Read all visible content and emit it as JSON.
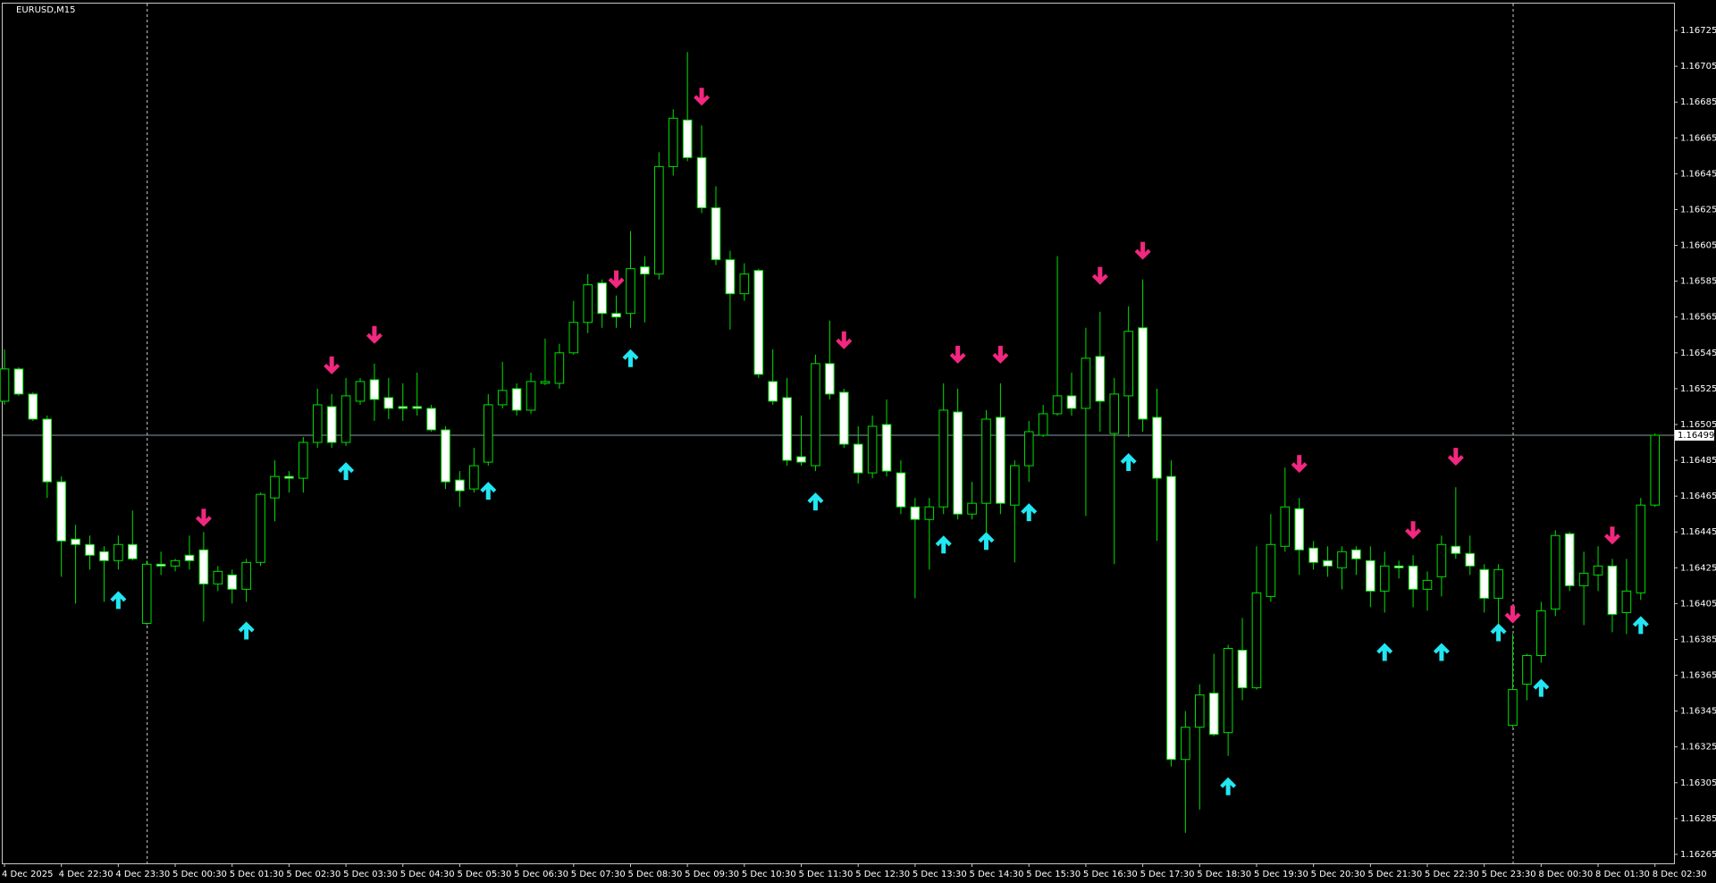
{
  "chart_data": {
    "type": "candlestick",
    "title": "EURUSD,M15",
    "categories": [
      "4 Dec 2025",
      null,
      null,
      null,
      "4 Dec 22:30",
      null,
      null,
      null,
      "4 Dec 23:30",
      null,
      null,
      null,
      "5 Dec 00:30",
      null,
      null,
      null,
      "5 Dec 01:30",
      null,
      null,
      null,
      "5 Dec 02:30",
      null,
      null,
      null,
      "5 Dec 03:30",
      null,
      null,
      null,
      "5 Dec 04:30",
      null,
      null,
      null,
      "5 Dec 05:30",
      null,
      null,
      null,
      "5 Dec 06:30",
      null,
      null,
      null,
      "5 Dec 07:30",
      null,
      null,
      null,
      "5 Dec 08:30",
      null,
      null,
      null,
      "5 Dec 09:30",
      null,
      null,
      null,
      "5 Dec 10:30",
      null,
      null,
      null,
      "5 Dec 11:30",
      null,
      null,
      null,
      "5 Dec 12:30",
      null,
      null,
      null,
      "5 Dec 13:30",
      null,
      null,
      null,
      "5 Dec 14:30",
      null,
      null,
      null,
      "5 Dec 15:30",
      null,
      null,
      null,
      "5 Dec 16:30",
      null,
      null,
      null,
      "5 Dec 17:30",
      null,
      null,
      null,
      "5 Dec 18:30",
      null,
      null,
      null,
      "5 Dec 19:30",
      null,
      null,
      null,
      "5 Dec 20:30",
      null,
      null,
      null,
      "5 Dec 21:30",
      null,
      null,
      null,
      "5 Dec 22:30",
      null,
      null,
      null,
      "5 Dec 23:30",
      null,
      null,
      null,
      "8 Dec 00:30",
      null,
      null,
      null,
      "8 Dec 01:30",
      null,
      null,
      null,
      "8 Dec 02:30"
    ],
    "open": [
      1.16518,
      1.16536,
      1.16522,
      1.16508,
      1.16473,
      1.16441,
      1.16438,
      1.16434,
      1.16429,
      1.16438,
      1.16394,
      1.16427,
      1.16426,
      1.16432,
      1.16435,
      1.16416,
      1.16421,
      1.16413,
      1.16428,
      1.16464,
      1.16476,
      1.16475,
      1.16495,
      1.16515,
      1.16495,
      1.16518,
      1.1653,
      1.1652,
      1.16515,
      1.16515,
      1.16514,
      1.16502,
      1.16474,
      1.16469,
      1.16484,
      1.16516,
      1.16525,
      1.16513,
      1.16528,
      1.16528,
      1.16545,
      1.16562,
      1.16584,
      1.16567,
      1.16567,
      1.16593,
      1.16589,
      1.16649,
      1.16675,
      1.16654,
      1.16626,
      1.16597,
      1.16578,
      1.16591,
      1.16529,
      1.1652,
      1.16487,
      1.16482,
      1.16539,
      1.16523,
      1.16494,
      1.16478,
      1.16505,
      1.16478,
      1.16459,
      1.16452,
      1.16459,
      1.16512,
      1.16455,
      1.16461,
      1.16509,
      1.1646,
      1.16482,
      1.16499,
      1.16511,
      1.16521,
      1.16514,
      1.16543,
      1.165,
      1.16521,
      1.16559,
      1.16509,
      1.16476,
      1.16318,
      1.16336,
      1.16355,
      1.16333,
      1.16379,
      1.16358,
      1.16409,
      1.16437,
      1.16458,
      1.16436,
      1.16429,
      1.16425,
      1.16435,
      1.16429,
      1.16412,
      1.16426,
      1.16426,
      1.16413,
      1.1642,
      1.16437,
      1.16433,
      1.16424,
      1.16408,
      1.16337,
      1.1636,
      1.16376,
      1.16402,
      1.16444,
      1.16415,
      1.16421,
      1.16426,
      1.164,
      1.16411,
      1.1646
    ],
    "high": [
      1.16547,
      1.16537,
      1.16523,
      1.1651,
      1.16476,
      1.16449,
      1.16443,
      1.16437,
      1.16443,
      1.16457,
      1.16429,
      1.16434,
      1.1643,
      1.16443,
      1.16445,
      1.16426,
      1.16424,
      1.1643,
      1.16467,
      1.16485,
      1.16479,
      1.16498,
      1.16525,
      1.16522,
      1.16531,
      1.16531,
      1.16539,
      1.16531,
      1.16528,
      1.16534,
      1.16516,
      1.16504,
      1.16479,
      1.16492,
      1.16522,
      1.1654,
      1.16528,
      1.16534,
      1.16553,
      1.1655,
      1.16574,
      1.16589,
      1.16586,
      1.16577,
      1.16613,
      1.16599,
      1.16657,
      1.16681,
      1.16713,
      1.16672,
      1.16638,
      1.16602,
      1.16595,
      1.16592,
      1.16547,
      1.16531,
      1.1651,
      1.16544,
      1.16563,
      1.16525,
      1.16504,
      1.1651,
      1.16519,
      1.16485,
      1.16464,
      1.16464,
      1.16528,
      1.16525,
      1.16473,
      1.16513,
      1.16528,
      1.16485,
      1.16507,
      1.16516,
      1.16599,
      1.16534,
      1.16559,
      1.16568,
      1.16531,
      1.16571,
      1.16586,
      1.16525,
      1.16485,
      1.16345,
      1.1636,
      1.16377,
      1.16382,
      1.16397,
      1.16437,
      1.16455,
      1.16481,
      1.16464,
      1.1644,
      1.16437,
      1.16437,
      1.16437,
      1.16437,
      1.16434,
      1.16429,
      1.16432,
      1.16423,
      1.16443,
      1.1647,
      1.16443,
      1.16427,
      1.16427,
      1.16388,
      1.16377,
      1.16406,
      1.16446,
      1.16445,
      1.16434,
      1.16437,
      1.1643,
      1.1643,
      1.16464,
      1.165
    ],
    "low": [
      1.16516,
      1.16521,
      1.16507,
      1.16464,
      1.1642,
      1.16405,
      1.16424,
      1.16406,
      1.16424,
      1.16429,
      1.16393,
      1.16421,
      1.16423,
      1.16424,
      1.16395,
      1.16412,
      1.16405,
      1.16406,
      1.16426,
      1.16451,
      1.16467,
      1.16467,
      1.16492,
      1.16492,
      1.16493,
      1.16516,
      1.16507,
      1.16508,
      1.16507,
      1.1651,
      1.16501,
      1.16469,
      1.16459,
      1.16467,
      1.16482,
      1.16514,
      1.1651,
      1.16511,
      1.16527,
      1.16525,
      1.16544,
      1.16556,
      1.16559,
      1.16559,
      1.16559,
      1.16562,
      1.16586,
      1.16644,
      1.16652,
      1.16623,
      1.16594,
      1.16558,
      1.16574,
      1.16531,
      1.16516,
      1.16482,
      1.16482,
      1.16479,
      1.16519,
      1.16492,
      1.16472,
      1.16475,
      1.16476,
      1.16455,
      1.16408,
      1.16424,
      1.16455,
      1.16452,
      1.16452,
      1.16443,
      1.16455,
      1.16428,
      1.16473,
      1.16498,
      1.1651,
      1.1651,
      1.16454,
      1.16501,
      1.16427,
      1.16498,
      1.16501,
      1.1644,
      1.16314,
      1.16277,
      1.1629,
      1.16331,
      1.1632,
      1.16351,
      1.16357,
      1.16406,
      1.16434,
      1.16421,
      1.16424,
      1.1642,
      1.16413,
      1.16421,
      1.16403,
      1.164,
      1.16419,
      1.16403,
      1.16401,
      1.16409,
      1.1643,
      1.16421,
      1.164,
      1.16391,
      1.16336,
      1.16351,
      1.16372,
      1.16398,
      1.16412,
      1.16393,
      1.16412,
      1.16389,
      1.16388,
      1.16407,
      1.16459
    ],
    "close": [
      1.16536,
      1.16522,
      1.16508,
      1.16473,
      1.1644,
      1.16438,
      1.16432,
      1.16429,
      1.16438,
      1.1643,
      1.16427,
      1.16426,
      1.16429,
      1.16429,
      1.16416,
      1.16423,
      1.16413,
      1.16428,
      1.16466,
      1.16476,
      1.16475,
      1.16495,
      1.16516,
      1.16495,
      1.16521,
      1.16529,
      1.16519,
      1.16514,
      1.16514,
      1.16514,
      1.16502,
      1.16473,
      1.16468,
      1.16482,
      1.16516,
      1.16524,
      1.16513,
      1.16529,
      1.16529,
      1.16545,
      1.16562,
      1.16583,
      1.16567,
      1.16565,
      1.16592,
      1.16589,
      1.16649,
      1.16676,
      1.16654,
      1.16626,
      1.16597,
      1.16578,
      1.16589,
      1.16533,
      1.16518,
      1.16485,
      1.16484,
      1.16539,
      1.16522,
      1.16494,
      1.16478,
      1.16504,
      1.16479,
      1.16459,
      1.16452,
      1.16459,
      1.16513,
      1.16455,
      1.16461,
      1.16508,
      1.16461,
      1.16482,
      1.16501,
      1.16511,
      1.16521,
      1.16514,
      1.16542,
      1.16518,
      1.16522,
      1.16557,
      1.16508,
      1.16475,
      1.16318,
      1.16336,
      1.16354,
      1.16332,
      1.1638,
      1.16358,
      1.16411,
      1.16438,
      1.16459,
      1.16435,
      1.16428,
      1.16426,
      1.16434,
      1.1643,
      1.16412,
      1.16426,
      1.16425,
      1.16413,
      1.16418,
      1.16438,
      1.16433,
      1.16426,
      1.16408,
      1.16424,
      1.16357,
      1.16376,
      1.16401,
      1.16443,
      1.16415,
      1.16422,
      1.16426,
      1.16399,
      1.16412,
      1.1646,
      1.16499
    ],
    "bull_color": "#000000",
    "bear_color": "#ffffff",
    "wick_color": "#00e000",
    "ylim": [
      1.1626,
      1.1674
    ],
    "yticks": [
      1.16725,
      1.16705,
      1.16685,
      1.16665,
      1.16645,
      1.16625,
      1.16605,
      1.16585,
      1.16565,
      1.16545,
      1.16525,
      1.16505,
      1.16485,
      1.16465,
      1.16445,
      1.16425,
      1.16405,
      1.16385,
      1.16365,
      1.16345,
      1.16325,
      1.16305,
      1.16285,
      1.16265
    ],
    "current_price": 1.16499,
    "period_separators": [
      10,
      106
    ],
    "buy_signals": {
      "color": "#22e6f2",
      "x": [
        8,
        17,
        24,
        34,
        44,
        57,
        66,
        69,
        72,
        79,
        86,
        97,
        101,
        105,
        108,
        115
      ],
      "values": [
        1.16412,
        1.16395,
        1.16484,
        1.16473,
        1.16547,
        1.16467,
        1.16443,
        1.16445,
        1.16461,
        1.16489,
        1.16308,
        1.16383,
        1.16383,
        1.16394,
        1.16363,
        1.16398
      ]
    },
    "sell_signals": {
      "color": "#f2277f",
      "x": [
        14,
        23,
        26,
        43,
        49,
        59,
        67,
        70,
        77,
        80,
        91,
        99,
        102,
        106,
        113
      ],
      "values": [
        1.16448,
        1.16533,
        1.1655,
        1.16581,
        1.16683,
        1.16547,
        1.16539,
        1.16539,
        1.16583,
        1.16597,
        1.16478,
        1.16441,
        1.16482,
        1.16394,
        1.16438
      ]
    }
  }
}
